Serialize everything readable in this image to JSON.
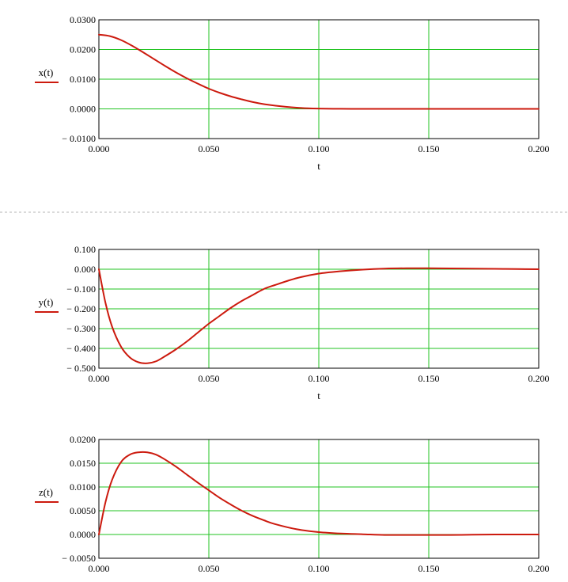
{
  "colors": {
    "curve": "#cc1a0e",
    "grid": "#22c322",
    "frame": "#000000",
    "separator": "#b4b4b4"
  },
  "chart_data": [
    {
      "type": "line",
      "ylabel": "x(t)",
      "xlabel": "t",
      "xlim": [
        0,
        0.2
      ],
      "ylim": [
        -0.01,
        0.03
      ],
      "x_ticks": [
        "0.000",
        "0.050",
        "0.100",
        "0.150",
        "0.200"
      ],
      "y_ticks": [
        "0.0300",
        "0.0200",
        "0.0100",
        "0.0000",
        "− 0.0100"
      ],
      "grid": true,
      "series": [
        {
          "x": [
            0,
            0.005,
            0.01,
            0.015,
            0.02,
            0.025,
            0.03,
            0.035,
            0.04,
            0.045,
            0.05,
            0.055,
            0.06,
            0.065,
            0.07,
            0.075,
            0.08,
            0.085,
            0.09,
            0.095,
            0.1,
            0.11,
            0.12,
            0.13,
            0.14,
            0.15,
            0.16,
            0.17,
            0.18,
            0.19,
            0.2
          ],
          "y": [
            0.025,
            0.0245,
            0.0232,
            0.0213,
            0.0191,
            0.0168,
            0.0145,
            0.0123,
            0.0103,
            0.0085,
            0.0068,
            0.0054,
            0.0042,
            0.0032,
            0.0023,
            0.0016,
            0.0011,
            0.0007,
            0.0004,
            0.0002,
            0.0001,
            2e-05,
            0,
            0,
            0,
            0,
            0,
            0,
            0,
            0,
            0
          ]
        }
      ]
    },
    {
      "type": "line",
      "ylabel": "y(t)",
      "xlabel": "t",
      "xlim": [
        0,
        0.2
      ],
      "ylim": [
        -0.5,
        0.1
      ],
      "x_ticks": [
        "0.000",
        "0.050",
        "0.100",
        "0.150",
        "0.200"
      ],
      "y_ticks": [
        "0.100",
        "0.000",
        "− 0.100",
        "− 0.200",
        "− 0.300",
        "− 0.400",
        "− 0.500"
      ],
      "grid": true,
      "series": [
        {
          "x": [
            0,
            0.003,
            0.006,
            0.01,
            0.014,
            0.018,
            0.022,
            0.026,
            0.03,
            0.035,
            0.04,
            0.045,
            0.05,
            0.055,
            0.06,
            0.065,
            0.07,
            0.075,
            0.08,
            0.09,
            0.1,
            0.11,
            0.12,
            0.13,
            0.14,
            0.15,
            0.16,
            0.17,
            0.18,
            0.19,
            0.2
          ],
          "y": [
            0,
            -0.17,
            -0.29,
            -0.39,
            -0.445,
            -0.47,
            -0.475,
            -0.465,
            -0.44,
            -0.405,
            -0.365,
            -0.32,
            -0.275,
            -0.235,
            -0.195,
            -0.16,
            -0.13,
            -0.1,
            -0.08,
            -0.045,
            -0.022,
            -0.01,
            -0.002,
            0.003,
            0.005,
            0.005,
            0.004,
            0.003,
            0.002,
            0.001,
            0
          ]
        }
      ]
    },
    {
      "type": "line",
      "ylabel": "z(t)",
      "xlabel": "",
      "xlim": [
        0,
        0.2
      ],
      "ylim": [
        -0.005,
        0.02
      ],
      "x_ticks": [
        "0.000",
        "0.050",
        "0.100",
        "0.150",
        "0.200"
      ],
      "y_ticks": [
        "0.0200",
        "0.0150",
        "0.0100",
        "0.0050",
        "0.0000",
        "− 0.0050"
      ],
      "grid": true,
      "series": [
        {
          "x": [
            0,
            0.003,
            0.006,
            0.01,
            0.014,
            0.018,
            0.022,
            0.026,
            0.03,
            0.035,
            0.04,
            0.045,
            0.05,
            0.055,
            0.06,
            0.065,
            0.07,
            0.075,
            0.08,
            0.09,
            0.1,
            0.11,
            0.12,
            0.13,
            0.14,
            0.15,
            0.16,
            0.17,
            0.18,
            0.19,
            0.2
          ],
          "y": [
            0,
            0.0068,
            0.0115,
            0.0152,
            0.0168,
            0.0173,
            0.0173,
            0.0168,
            0.0158,
            0.0143,
            0.0126,
            0.0109,
            0.0093,
            0.0077,
            0.0063,
            0.005,
            0.0039,
            0.003,
            0.0022,
            0.0011,
            0.0005,
            0.0002,
            5e-05,
            -0.0001,
            -0.0001,
            -0.0001,
            -0.0001,
            -5e-05,
            0,
            0,
            0
          ]
        }
      ]
    }
  ]
}
